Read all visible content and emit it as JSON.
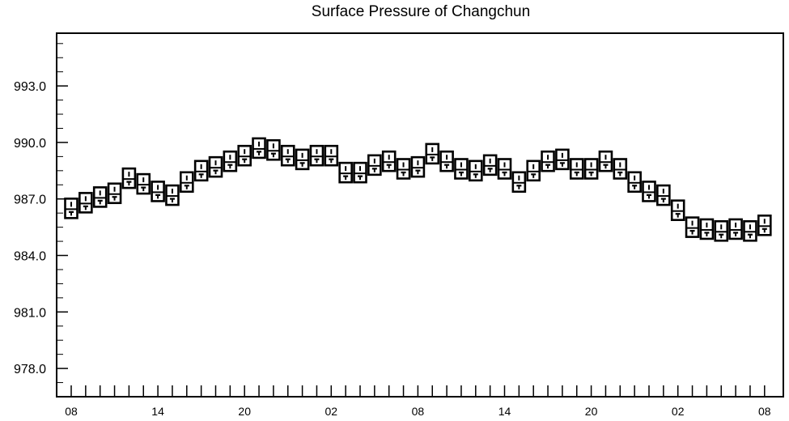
{
  "chart_data": {
    "type": "boxplot",
    "title": "Surface Pressure of Changchun",
    "xlabel": "",
    "ylabel": "",
    "ylim": [
      976.5,
      995.8
    ],
    "yticks": [
      978.0,
      981.0,
      984.0,
      987.0,
      990.0,
      993.0
    ],
    "yticklabels": [
      "978.0",
      "981.0",
      "984.0",
      "987.0",
      "990.0",
      "993.0"
    ],
    "xticks": [
      0,
      6,
      12,
      18,
      24,
      30,
      36,
      42,
      48
    ],
    "xticklabels": [
      "08",
      "14",
      "20",
      "02",
      "08",
      "14",
      "20",
      "02",
      "08"
    ],
    "grid": false,
    "x_hours": [
      0,
      1,
      2,
      3,
      4,
      5,
      6,
      7,
      8,
      9,
      10,
      11,
      12,
      13,
      14,
      15,
      16,
      17,
      18,
      19,
      20,
      21,
      22,
      23,
      24,
      25,
      26,
      27,
      28,
      29,
      30,
      31,
      32,
      33,
      34,
      35,
      36,
      37,
      38,
      39,
      40,
      41,
      42,
      43,
      44,
      45,
      46,
      47,
      48
    ],
    "values": [
      986.5,
      986.8,
      987.1,
      987.3,
      988.1,
      987.8,
      987.4,
      987.2,
      987.9,
      988.5,
      988.7,
      989.0,
      989.3,
      989.7,
      989.6,
      989.3,
      989.1,
      989.3,
      989.3,
      988.4,
      988.4,
      988.8,
      989.0,
      988.6,
      988.7,
      989.4,
      989.0,
      988.6,
      988.5,
      988.8,
      988.6,
      987.9,
      988.5,
      989.0,
      989.1,
      988.6,
      988.6,
      989.0,
      988.6,
      987.9,
      987.4,
      987.2,
      986.4,
      985.5,
      985.4,
      985.3,
      985.4,
      985.3,
      985.6
    ]
  }
}
